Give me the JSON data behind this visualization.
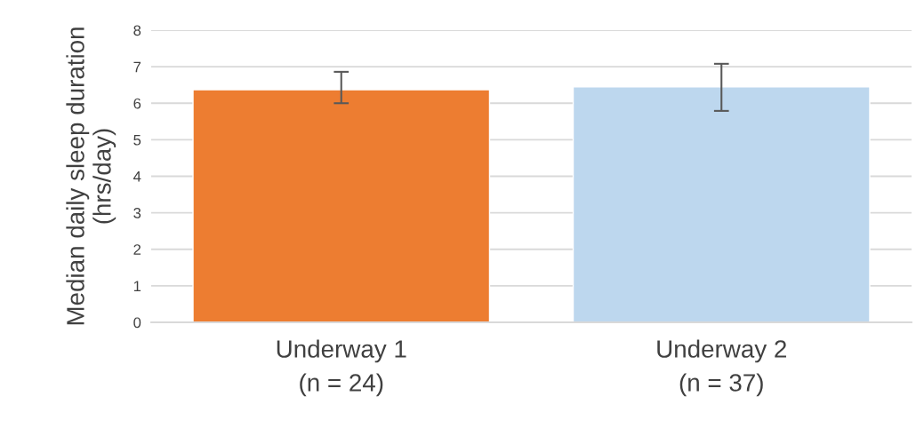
{
  "chart_data": {
    "type": "bar",
    "ylabel": "Median daily sleep duration (hrs/day)",
    "categories": [
      "Underway 1\n(n = 24)",
      "Underway 2\n(n = 37)"
    ],
    "values": [
      6.37,
      6.45
    ],
    "colors": [
      "#ed7d31",
      "#bdd7ee"
    ],
    "errors": [
      [
        6.0,
        6.86
      ],
      [
        5.79,
        7.08
      ]
    ],
    "ylim": [
      0,
      8
    ],
    "yticks": [
      0,
      1,
      2,
      3,
      4,
      5,
      6,
      7,
      8
    ],
    "grid": "y"
  }
}
